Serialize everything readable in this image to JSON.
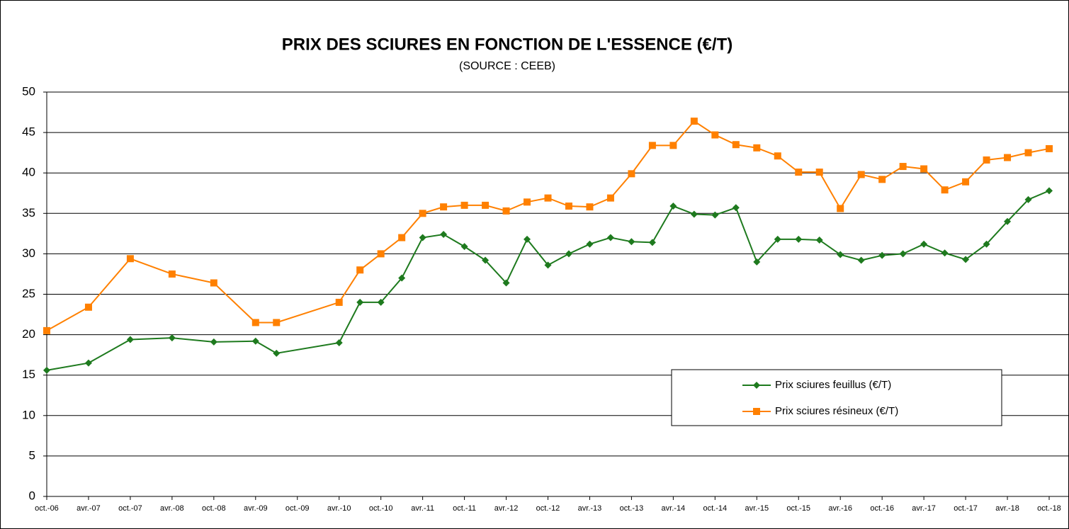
{
  "chart_data": {
    "type": "line",
    "title": "PRIX DES SCIURES EN FONCTION DE L'ESSENCE (€/T)",
    "subtitle": "(SOURCE : CEEB)",
    "categories": [
      "oct.-06",
      null,
      "avr.-07",
      null,
      "oct.-07",
      null,
      "avr.-08",
      null,
      "oct.-08",
      null,
      "avr.-09",
      null,
      "oct.-09",
      null,
      "avr.-10",
      null,
      "oct.-10",
      null,
      "avr.-11",
      null,
      "oct.-11",
      null,
      "avr.-12",
      null,
      "oct.-12",
      null,
      "avr.-13",
      null,
      "oct.-13",
      null,
      "avr.-14",
      null,
      "oct.-14",
      null,
      "avr.-15",
      null,
      "oct.-15",
      null,
      "avr.-16",
      null,
      "oct.-16",
      null,
      "avr.-17",
      null,
      "oct.-17",
      null,
      "avr.-18",
      null,
      "oct.-18"
    ],
    "series": [
      {
        "name": "Prix sciures feuillus (€/T)",
        "color": "#1e7a1e",
        "marker": "diamond",
        "values": [
          15.6,
          null,
          16.5,
          null,
          19.4,
          null,
          19.6,
          null,
          19.1,
          null,
          19.2,
          17.7,
          null,
          null,
          19.0,
          24.0,
          24.0,
          27.0,
          32.0,
          32.4,
          30.9,
          29.2,
          26.4,
          31.8,
          28.6,
          30.0,
          31.2,
          32.0,
          31.5,
          31.4,
          35.9,
          34.9,
          34.8,
          35.7,
          29.0,
          31.8,
          31.8,
          31.7,
          29.9,
          29.2,
          29.8,
          30.0,
          31.2,
          30.1,
          29.3,
          31.2,
          34.0,
          36.7,
          37.8
        ]
      },
      {
        "name": "Prix sciures résineux (€/T)",
        "color": "#ff8000",
        "marker": "square",
        "values": [
          20.5,
          null,
          23.4,
          null,
          29.4,
          null,
          27.5,
          null,
          26.4,
          null,
          21.5,
          21.5,
          null,
          null,
          24.0,
          28.0,
          30.0,
          32.0,
          35.0,
          35.8,
          36.0,
          36.0,
          35.3,
          36.4,
          36.9,
          35.9,
          35.8,
          36.9,
          39.9,
          43.4,
          43.4,
          46.4,
          44.7,
          43.5,
          43.1,
          42.1,
          40.1,
          40.1,
          35.6,
          39.8,
          39.2,
          40.8,
          40.5,
          37.9,
          38.9,
          41.6,
          41.9,
          42.5,
          43.0
        ]
      }
    ],
    "ylim": [
      0,
      50
    ],
    "yticks": [
      0,
      5,
      10,
      15,
      20,
      25,
      30,
      35,
      40,
      45,
      50
    ],
    "grid": true,
    "legend_position": "right"
  }
}
